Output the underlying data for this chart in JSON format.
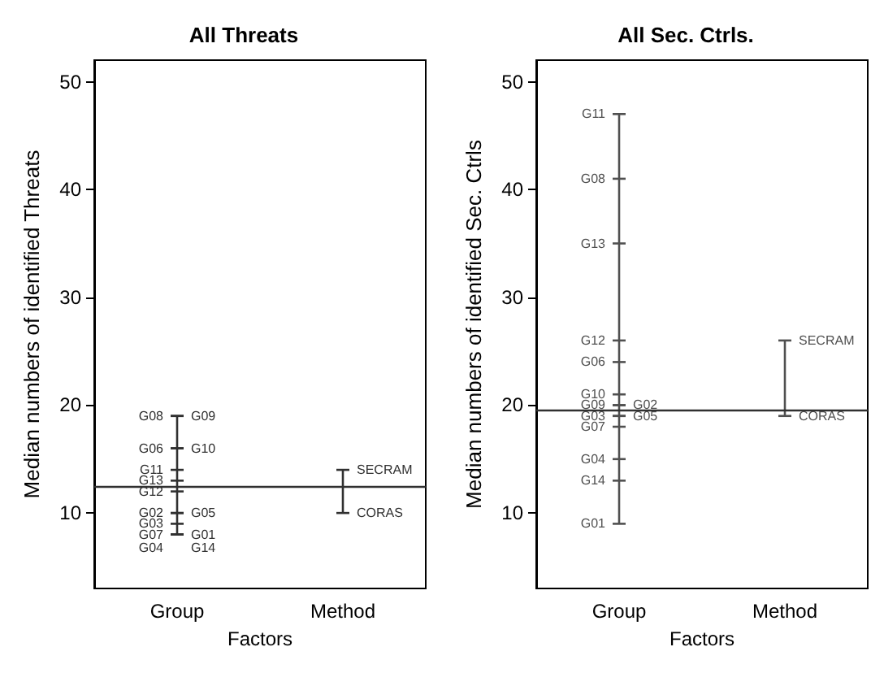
{
  "chart_data": [
    {
      "type": "line",
      "title": "All Threats",
      "xlabel": "Factors",
      "ylabel": "Median numbers of identified Threats",
      "categories": [
        "Group",
        "Method"
      ],
      "ylim": [
        3,
        52
      ],
      "yticks": [
        10,
        20,
        30,
        40,
        50
      ],
      "grid": false,
      "series": [
        {
          "color": "#303030",
          "x": [
            "Group",
            "Group",
            "Group",
            "Group",
            "Group",
            "Group",
            "Group",
            "Group",
            "Group",
            "Group",
            "Group",
            "Group",
            "Group",
            "Group"
          ],
          "values": [
            19,
            19,
            16,
            16,
            14,
            13,
            12,
            10,
            10,
            9,
            8,
            8,
            8,
            8
          ],
          "value_labels": [
            "G08",
            "G09",
            "G06",
            "G10",
            "G11",
            "G13",
            "G12",
            "G02",
            "G05",
            "G03",
            "G07",
            "G01",
            "G04",
            "G14"
          ]
        },
        {
          "color": "#303030",
          "x": [
            "Method",
            "Method"
          ],
          "values": [
            14,
            10
          ],
          "value_labels": [
            "SECRAM",
            "CORAS"
          ]
        }
      ],
      "ref_lines": [
        {
          "axis": "y",
          "value": 12.5,
          "color": "#303030"
        }
      ]
    },
    {
      "type": "line",
      "title": "All Sec. Ctrls.",
      "xlabel": "Factors",
      "ylabel": "Median numbers of identified Sec. Ctrls",
      "categories": [
        "Group",
        "Method"
      ],
      "ylim": [
        3,
        52
      ],
      "yticks": [
        10,
        20,
        30,
        40,
        50
      ],
      "grid": false,
      "series": [
        {
          "color": "#505050",
          "x": [
            "Group",
            "Group",
            "Group",
            "Group",
            "Group",
            "Group",
            "Group",
            "Group",
            "Group",
            "Group",
            "Group",
            "Group",
            "Group",
            "Group"
          ],
          "values": [
            47,
            41,
            35,
            26,
            24,
            21,
            20,
            20,
            19,
            19,
            18,
            15,
            13,
            9
          ],
          "value_labels": [
            "G11",
            "G08",
            "G13",
            "G12",
            "G06",
            "G10",
            "G09",
            "G02",
            "G03",
            "G05",
            "G07",
            "G04",
            "G14",
            "G01"
          ]
        },
        {
          "color": "#505050",
          "x": [
            "Method",
            "Method"
          ],
          "values": [
            26,
            19
          ],
          "value_labels": [
            "SECRAM",
            "CORAS"
          ]
        }
      ],
      "ref_lines": [
        {
          "axis": "y",
          "value": 19.5,
          "color": "#303030"
        }
      ]
    }
  ]
}
